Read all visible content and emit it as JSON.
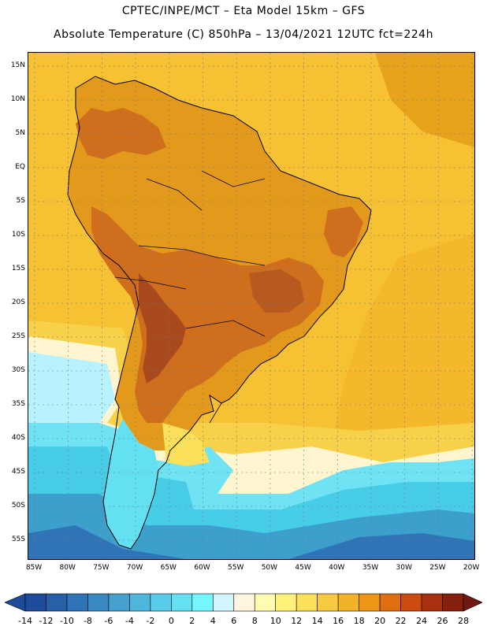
{
  "header": {
    "line1": "CPTEC/INPE/MCT –  Eta Model 15km – GFS",
    "line2": "Absolute Temperature (C) 850hPa – 13/04/2021 12UTC fct=224h"
  },
  "map": {
    "lat_labels": [
      "15N",
      "10N",
      "5N",
      "EQ",
      "5S",
      "10S",
      "15S",
      "20S",
      "25S",
      "30S",
      "35S",
      "40S",
      "45S",
      "50S",
      "55S"
    ],
    "lon_labels": [
      "85W",
      "80W",
      "75W",
      "70W",
      "65W",
      "60W",
      "55W",
      "50W",
      "45W",
      "40W",
      "35W",
      "30W",
      "25W",
      "20W"
    ],
    "colors": {
      "ocean_warm": "#f3b82c",
      "ocean_mild": "#f7d14a",
      "land_hot": "#e39a1c",
      "land_hotter": "#cf6f1e",
      "land_hottest": "#a84a1e",
      "cool_pale": "#fff6cf",
      "cool_cyan": "#b8f2ff",
      "cool_blue": "#47cde8",
      "cold_blue": "#3c9fcc",
      "coast": "#000000"
    }
  },
  "colorbar": {
    "labels": [
      "-14",
      "-12",
      "-10",
      "-8",
      "-6",
      "-4",
      "-2",
      "0",
      "2",
      "4",
      "6",
      "8",
      "10",
      "12",
      "14",
      "16",
      "18",
      "20",
      "22",
      "24",
      "26",
      "28"
    ],
    "colors": [
      "#1f4c9a",
      "#2760a8",
      "#2f74b6",
      "#3a89c2",
      "#46a0cf",
      "#4fb7dc",
      "#58cce8",
      "#63e0f2",
      "#74f7fd",
      "#d2f6ff",
      "#fff6e0",
      "#fffbb0",
      "#fff27a",
      "#fbe05c",
      "#f6cb42",
      "#f2b22a",
      "#ec9516",
      "#e16e10",
      "#cc4c10",
      "#a9310f",
      "#85200f"
    ]
  }
}
